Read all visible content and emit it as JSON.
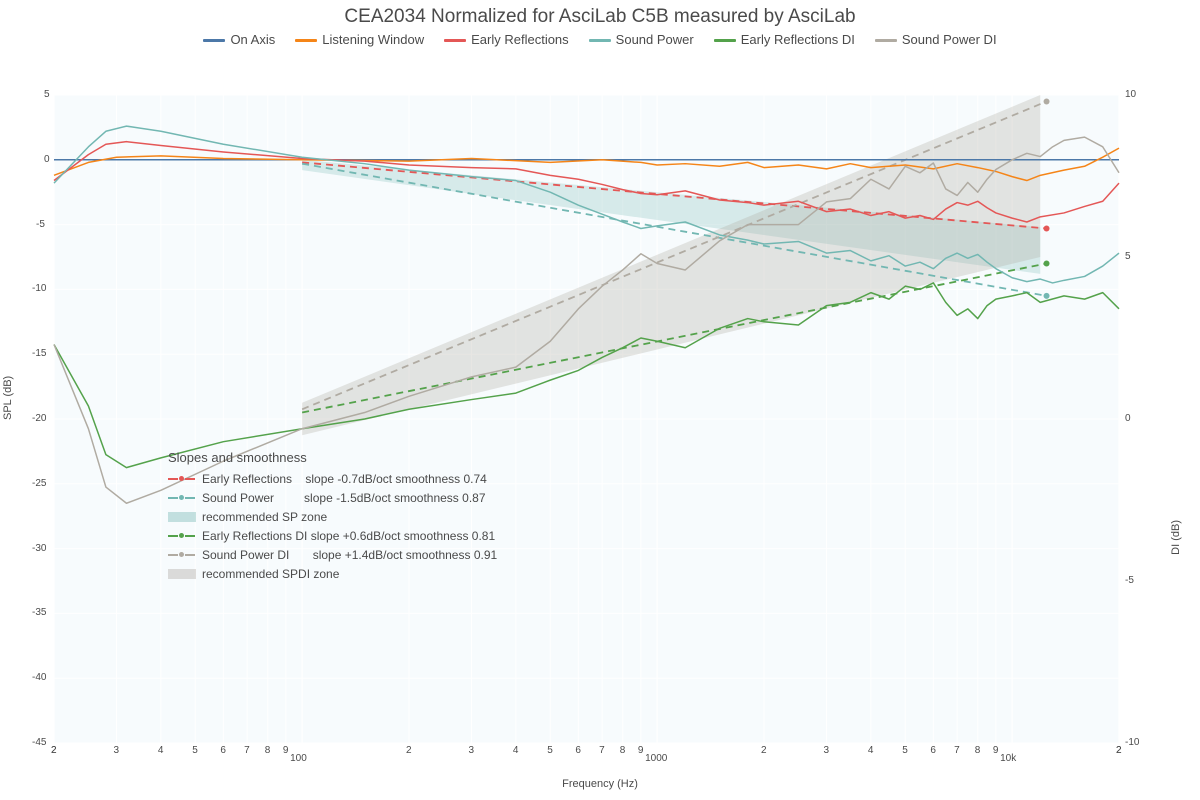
{
  "title": "CEA2034 Normalized for AsciLab C5B measured by AsciLab",
  "xlabel": "Frequency (Hz)",
  "ylabel_left": "SPL (dB)",
  "ylabel_right": "DI (dB)",
  "background_color": "#ffffff",
  "plot_background": "#f7fbfd",
  "grid_color": "#ffffff",
  "text_color": "#4a4a4a",
  "axes": {
    "x": {
      "scale": "log",
      "min": 20,
      "max": 20000,
      "major_ticks_labeled": [
        100,
        1000,
        10000
      ],
      "major_labels": [
        "100",
        "1000",
        "10k"
      ]
    },
    "y_left": {
      "min": -45,
      "max": 5,
      "step": 5
    },
    "y_right": {
      "min": -10,
      "max": 10,
      "step": 5
    }
  },
  "legend_top": [
    {
      "label": "On Axis",
      "color": "#4c78a8"
    },
    {
      "label": "Listening Window",
      "color": "#f58518"
    },
    {
      "label": "Early Reflections",
      "color": "#e45756"
    },
    {
      "label": "Sound Power",
      "color": "#72b7b2"
    },
    {
      "label": "Early Reflections DI",
      "color": "#54a24b"
    },
    {
      "label": "Sound Power DI",
      "color": "#b0aba2"
    }
  ],
  "slopes_legend": {
    "title": "Slopes and smoothness",
    "rows": [
      {
        "type": "series",
        "color": "#e45756",
        "label": "Early Reflections    slope -0.7dB/oct smoothness 0.74"
      },
      {
        "type": "series",
        "color": "#72b7b2",
        "label": "Sound Power         slope -1.5dB/oct smoothness 0.87"
      },
      {
        "type": "band",
        "color": "#72b7b2",
        "label": "recommended SP zone"
      },
      {
        "type": "series",
        "color": "#54a24b",
        "label": "Early Reflections DI slope +0.6dB/oct smoothness 0.81"
      },
      {
        "type": "series",
        "color": "#b0aba2",
        "label": "Sound Power DI       slope +1.4dB/oct smoothness 0.91"
      },
      {
        "type": "band",
        "color": "#b0aba2",
        "label": "recommended SPDI zone"
      }
    ]
  },
  "bands": [
    {
      "name": "sp-zone",
      "color": "#72b7b2",
      "opacity": 0.25,
      "points_top": [
        [
          100,
          0
        ],
        [
          12000,
          -5.2
        ]
      ],
      "points_bottom": [
        [
          100,
          -0.8
        ],
        [
          12000,
          -8.8
        ]
      ]
    },
    {
      "name": "spdi-zone",
      "color": "#b0aba2",
      "opacity": 0.3,
      "axis": "right",
      "points_top": [
        [
          100,
          0.5
        ],
        [
          12000,
          10
        ]
      ],
      "points_bottom": [
        [
          100,
          -0.5
        ],
        [
          12000,
          5
        ]
      ]
    }
  ],
  "slope_lines": [
    {
      "name": "er-slope",
      "color": "#e45756",
      "dash": true,
      "points": [
        [
          100,
          -0.2
        ],
        [
          12500,
          -5.3
        ]
      ],
      "endpoint": true
    },
    {
      "name": "sp-slope",
      "color": "#72b7b2",
      "dash": true,
      "points": [
        [
          100,
          -0.3
        ],
        [
          12500,
          -10.5
        ]
      ],
      "endpoint": true
    },
    {
      "name": "erdi-slope",
      "color": "#54a24b",
      "dash": true,
      "axis": "right",
      "points": [
        [
          100,
          0.2
        ],
        [
          12500,
          4.8
        ]
      ],
      "endpoint": true
    },
    {
      "name": "spdi-slope",
      "color": "#b0aba2",
      "dash": true,
      "axis": "right",
      "points": [
        [
          100,
          0.3
        ],
        [
          12500,
          9.8
        ]
      ],
      "endpoint": true
    }
  ],
  "series": [
    {
      "name": "On Axis",
      "color": "#4c78a8",
      "width": 1.5,
      "data": [
        [
          20,
          0
        ],
        [
          20000,
          0
        ]
      ]
    },
    {
      "name": "Listening Window",
      "color": "#f58518",
      "width": 1.5,
      "data": [
        [
          20,
          -1.2
        ],
        [
          25,
          -0.2
        ],
        [
          30,
          0.2
        ],
        [
          40,
          0.3
        ],
        [
          60,
          0.1
        ],
        [
          100,
          0
        ],
        [
          200,
          -0.1
        ],
        [
          300,
          0.1
        ],
        [
          500,
          -0.2
        ],
        [
          700,
          0
        ],
        [
          900,
          -0.2
        ],
        [
          1000,
          -0.4
        ],
        [
          1200,
          -0.3
        ],
        [
          1500,
          -0.5
        ],
        [
          1800,
          -0.2
        ],
        [
          2000,
          -0.6
        ],
        [
          2500,
          -0.4
        ],
        [
          3000,
          -0.7
        ],
        [
          3500,
          -0.3
        ],
        [
          4000,
          -0.6
        ],
        [
          5000,
          -0.4
        ],
        [
          6000,
          -0.7
        ],
        [
          7000,
          -0.3
        ],
        [
          8000,
          -0.6
        ],
        [
          9000,
          -0.9
        ],
        [
          10000,
          -1.3
        ],
        [
          11000,
          -1.6
        ],
        [
          12000,
          -1.2
        ],
        [
          14000,
          -0.8
        ],
        [
          16000,
          -0.5
        ],
        [
          18000,
          0.2
        ],
        [
          20000,
          0.9
        ]
      ]
    },
    {
      "name": "Early Reflections",
      "color": "#e45756",
      "width": 1.5,
      "data": [
        [
          20,
          -1.6
        ],
        [
          25,
          0.4
        ],
        [
          28,
          1.2
        ],
        [
          32,
          1.4
        ],
        [
          40,
          1.1
        ],
        [
          60,
          0.6
        ],
        [
          100,
          0.1
        ],
        [
          150,
          -0.1
        ],
        [
          200,
          -0.4
        ],
        [
          300,
          -0.6
        ],
        [
          400,
          -0.7
        ],
        [
          500,
          -1.2
        ],
        [
          600,
          -1.5
        ],
        [
          700,
          -1.9
        ],
        [
          800,
          -2.3
        ],
        [
          900,
          -2.6
        ],
        [
          1000,
          -2.7
        ],
        [
          1200,
          -2.4
        ],
        [
          1500,
          -3.1
        ],
        [
          1800,
          -3.3
        ],
        [
          2000,
          -3.5
        ],
        [
          2500,
          -3.2
        ],
        [
          3000,
          -4
        ],
        [
          3500,
          -3.8
        ],
        [
          4000,
          -4.3
        ],
        [
          4500,
          -4
        ],
        [
          5000,
          -4.5
        ],
        [
          5500,
          -4.3
        ],
        [
          6000,
          -4.6
        ],
        [
          6500,
          -3.8
        ],
        [
          7000,
          -3.3
        ],
        [
          7500,
          -3.5
        ],
        [
          8000,
          -3.2
        ],
        [
          8500,
          -3.7
        ],
        [
          9000,
          -4.1
        ],
        [
          10000,
          -4.5
        ],
        [
          11000,
          -4.8
        ],
        [
          12000,
          -4.4
        ],
        [
          14000,
          -4.1
        ],
        [
          16000,
          -3.6
        ],
        [
          18000,
          -3.2
        ],
        [
          20000,
          -1.8
        ]
      ]
    },
    {
      "name": "Sound Power",
      "color": "#72b7b2",
      "width": 1.5,
      "data": [
        [
          20,
          -1.8
        ],
        [
          25,
          1
        ],
        [
          28,
          2.2
        ],
        [
          32,
          2.6
        ],
        [
          40,
          2.2
        ],
        [
          60,
          1.2
        ],
        [
          100,
          0.2
        ],
        [
          150,
          -0.3
        ],
        [
          200,
          -0.8
        ],
        [
          300,
          -1.3
        ],
        [
          400,
          -1.6
        ],
        [
          500,
          -2.5
        ],
        [
          600,
          -3.5
        ],
        [
          700,
          -4.2
        ],
        [
          800,
          -4.8
        ],
        [
          900,
          -5.3
        ],
        [
          1000,
          -5.1
        ],
        [
          1200,
          -4.8
        ],
        [
          1500,
          -5.8
        ],
        [
          1800,
          -6.2
        ],
        [
          2000,
          -6.5
        ],
        [
          2500,
          -6.3
        ],
        [
          3000,
          -7.2
        ],
        [
          3500,
          -7
        ],
        [
          4000,
          -7.8
        ],
        [
          4500,
          -7.4
        ],
        [
          5000,
          -8.2
        ],
        [
          5500,
          -7.9
        ],
        [
          6000,
          -8.4
        ],
        [
          6500,
          -7.6
        ],
        [
          7000,
          -7.2
        ],
        [
          7500,
          -7.6
        ],
        [
          8000,
          -7.3
        ],
        [
          8500,
          -7.9
        ],
        [
          9000,
          -8.4
        ],
        [
          10000,
          -9.1
        ],
        [
          11000,
          -9.4
        ],
        [
          12000,
          -9.2
        ],
        [
          13000,
          -9.5
        ],
        [
          14000,
          -9.3
        ],
        [
          16000,
          -9
        ],
        [
          18000,
          -8.2
        ],
        [
          20000,
          -7.2
        ]
      ]
    },
    {
      "name": "Early Reflections DI",
      "color": "#54a24b",
      "width": 1.5,
      "axis": "right",
      "data": [
        [
          20,
          2.3
        ],
        [
          25,
          0.4
        ],
        [
          28,
          -1.1
        ],
        [
          32,
          -1.5
        ],
        [
          40,
          -1.2
        ],
        [
          60,
          -0.7
        ],
        [
          100,
          -0.3
        ],
        [
          150,
          0
        ],
        [
          200,
          0.3
        ],
        [
          300,
          0.6
        ],
        [
          400,
          0.8
        ],
        [
          500,
          1.2
        ],
        [
          600,
          1.5
        ],
        [
          700,
          1.9
        ],
        [
          800,
          2.2
        ],
        [
          900,
          2.5
        ],
        [
          1000,
          2.4
        ],
        [
          1200,
          2.2
        ],
        [
          1500,
          2.8
        ],
        [
          1800,
          3.1
        ],
        [
          2000,
          3
        ],
        [
          2500,
          2.9
        ],
        [
          3000,
          3.5
        ],
        [
          3500,
          3.6
        ],
        [
          4000,
          3.9
        ],
        [
          4500,
          3.7
        ],
        [
          5000,
          4.1
        ],
        [
          5500,
          4
        ],
        [
          6000,
          4.2
        ],
        [
          6500,
          3.6
        ],
        [
          7000,
          3.2
        ],
        [
          7500,
          3.4
        ],
        [
          8000,
          3.1
        ],
        [
          8500,
          3.5
        ],
        [
          9000,
          3.7
        ],
        [
          10000,
          3.8
        ],
        [
          11000,
          3.9
        ],
        [
          12000,
          3.6
        ],
        [
          14000,
          3.8
        ],
        [
          16000,
          3.7
        ],
        [
          18000,
          3.9
        ],
        [
          20000,
          3.4
        ]
      ]
    },
    {
      "name": "Sound Power DI",
      "color": "#b0aba2",
      "width": 1.5,
      "axis": "right",
      "data": [
        [
          20,
          2.3
        ],
        [
          25,
          -0.3
        ],
        [
          28,
          -2.1
        ],
        [
          32,
          -2.6
        ],
        [
          40,
          -2.2
        ],
        [
          60,
          -1.3
        ],
        [
          100,
          -0.3
        ],
        [
          150,
          0.2
        ],
        [
          200,
          0.7
        ],
        [
          300,
          1.3
        ],
        [
          400,
          1.6
        ],
        [
          500,
          2.4
        ],
        [
          600,
          3.4
        ],
        [
          700,
          4.1
        ],
        [
          800,
          4.6
        ],
        [
          900,
          5.1
        ],
        [
          1000,
          4.8
        ],
        [
          1200,
          4.6
        ],
        [
          1500,
          5.5
        ],
        [
          1800,
          6
        ],
        [
          2000,
          6
        ],
        [
          2500,
          6
        ],
        [
          3000,
          6.7
        ],
        [
          3500,
          6.8
        ],
        [
          4000,
          7.4
        ],
        [
          4500,
          7.1
        ],
        [
          5000,
          7.8
        ],
        [
          5500,
          7.6
        ],
        [
          6000,
          7.9
        ],
        [
          6500,
          7.1
        ],
        [
          7000,
          6.9
        ],
        [
          7500,
          7.3
        ],
        [
          8000,
          7
        ],
        [
          8500,
          7.4
        ],
        [
          9000,
          7.7
        ],
        [
          10000,
          8
        ],
        [
          11000,
          8.2
        ],
        [
          12000,
          8.1
        ],
        [
          13000,
          8.4
        ],
        [
          14000,
          8.6
        ],
        [
          16000,
          8.7
        ],
        [
          18000,
          8.4
        ],
        [
          20000,
          7.6
        ]
      ]
    }
  ]
}
